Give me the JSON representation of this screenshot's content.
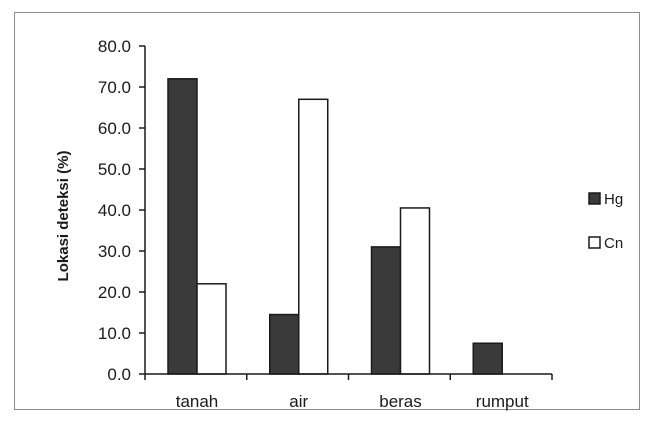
{
  "chart_data": {
    "type": "bar",
    "title": "",
    "xlabel": "",
    "ylabel": "Lokasi  deteksi (%)",
    "categories": [
      "tanah",
      "air",
      "beras",
      "rumput"
    ],
    "series": [
      {
        "name": "Hg",
        "values": [
          72.0,
          14.5,
          31.0,
          7.5
        ],
        "color": "#3a3a3a"
      },
      {
        "name": "Cn",
        "values": [
          22.0,
          67.0,
          40.5,
          0.0
        ],
        "color": "#ffffff"
      }
    ],
    "ylim": [
      0,
      80
    ],
    "yticks": [
      "0.0",
      "10.0",
      "20.0",
      "30.0",
      "40.0",
      "50.0",
      "60.0",
      "70.0",
      "80.0"
    ],
    "grid": false,
    "legend_position": "right"
  }
}
